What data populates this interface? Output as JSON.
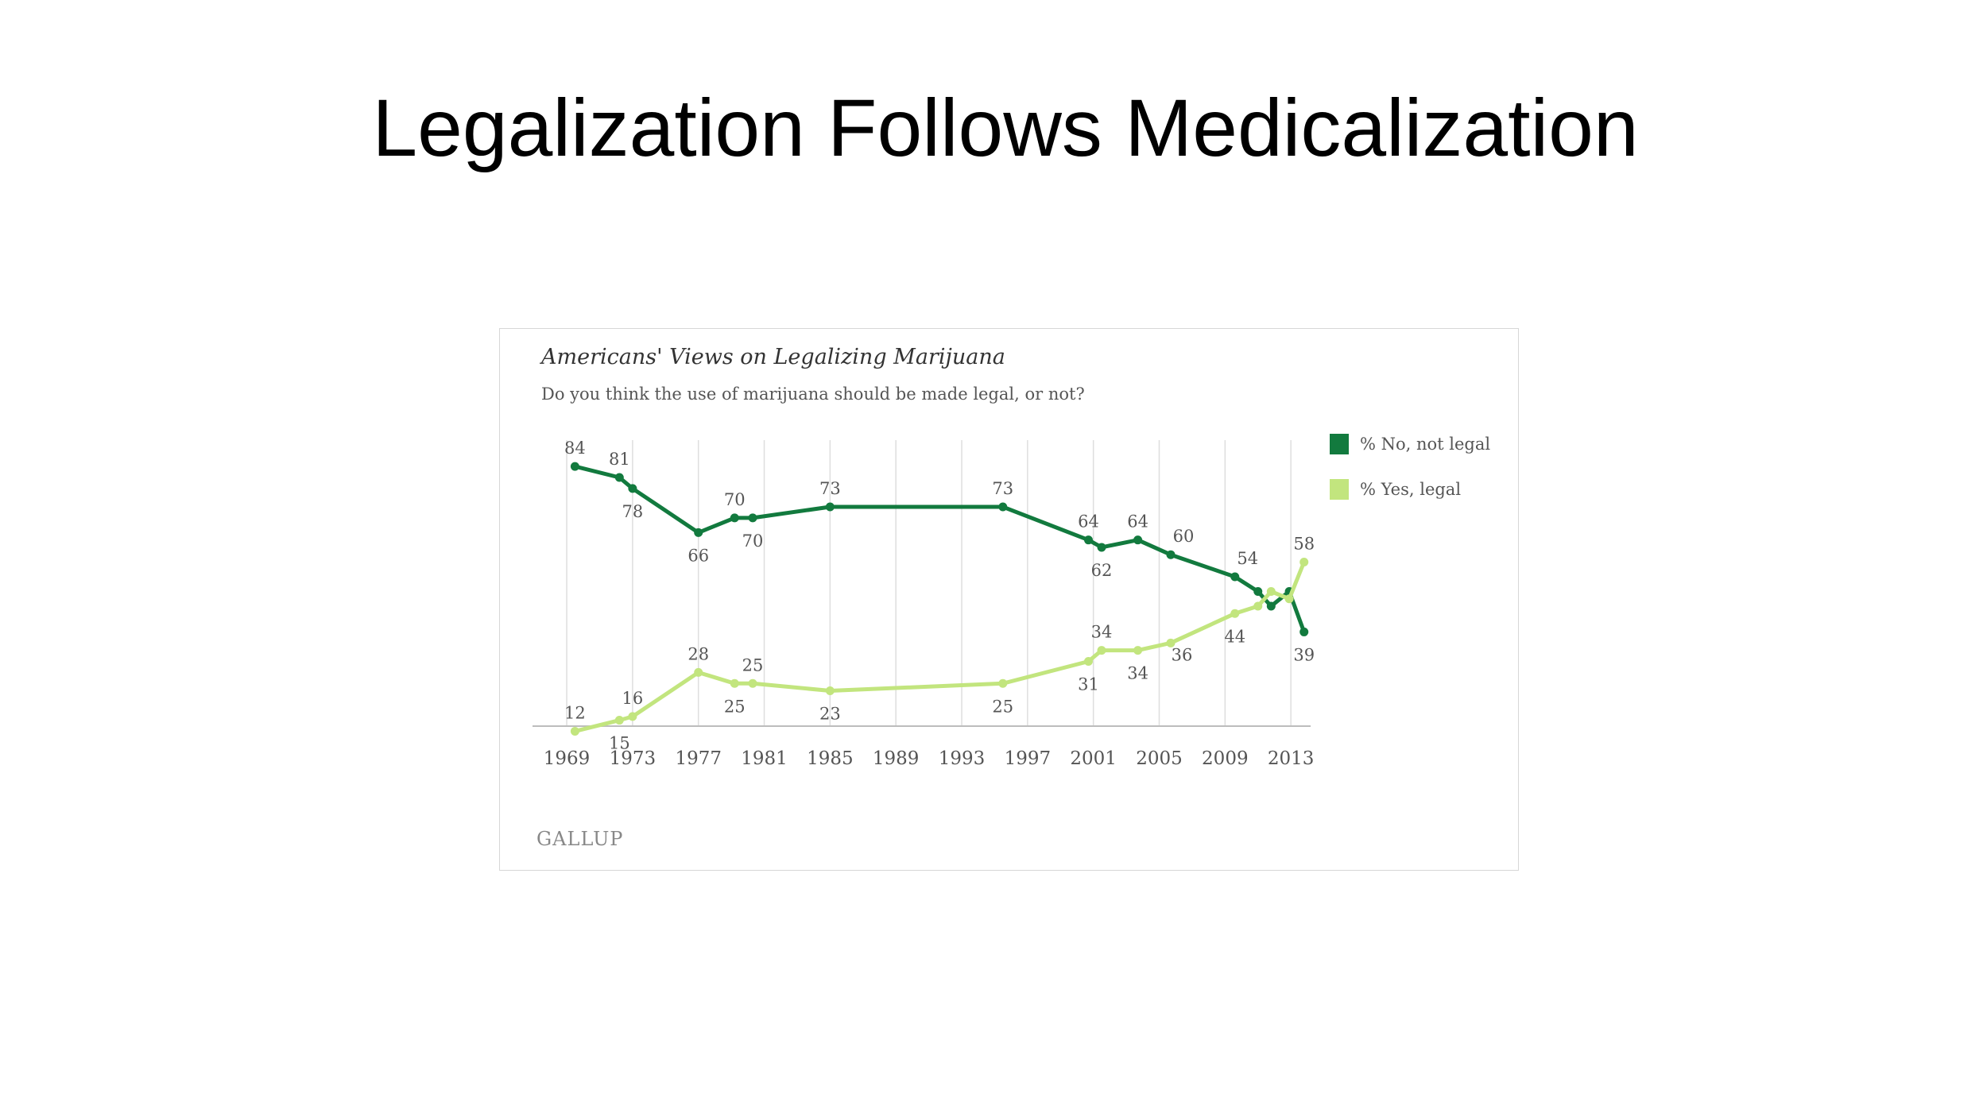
{
  "slide": {
    "title": "Legalization Follows Medicalization"
  },
  "chart_data": {
    "type": "line",
    "title": "Americans' Views on Legalizing Marijuana",
    "subtitle": "Do you think the use of marijuana should be made legal, or not?",
    "source": "GALLUP",
    "xlabel": "",
    "ylabel": "",
    "xlim": [
      1967.5,
      2014.2
    ],
    "ylim": [
      0,
      100
    ],
    "x_ticks": [
      "1969",
      "1973",
      "1977",
      "1981",
      "1985",
      "1989",
      "1993",
      "1997",
      "2001",
      "2005",
      "2009",
      "2013"
    ],
    "grid": "vertical",
    "legend_position": "right",
    "series": [
      {
        "name": "% No, not legal",
        "color": "#127a3e",
        "x": [
          1969.5,
          1972.2,
          1973.0,
          1977.0,
          1979.2,
          1980.3,
          1985.0,
          1995.5,
          2000.7,
          2001.5,
          2003.7,
          2005.7,
          2009.6,
          2011.0,
          2011.8,
          2012.9,
          2013.8
        ],
        "values": [
          84,
          81,
          78,
          66,
          70,
          70,
          73,
          73,
          64,
          62,
          64,
          60,
          54,
          50,
          46,
          50,
          39
        ],
        "labels": [
          {
            "i": 0,
            "text": "84",
            "pos": "above"
          },
          {
            "i": 1,
            "text": "81",
            "pos": "above"
          },
          {
            "i": 2,
            "text": "78",
            "pos": "below"
          },
          {
            "i": 3,
            "text": "66",
            "pos": "below"
          },
          {
            "i": 4,
            "text": "70",
            "pos": "above"
          },
          {
            "i": 5,
            "text": "70",
            "pos": "below"
          },
          {
            "i": 6,
            "text": "73",
            "pos": "above"
          },
          {
            "i": 7,
            "text": "73",
            "pos": "above"
          },
          {
            "i": 8,
            "text": "64",
            "pos": "above"
          },
          {
            "i": 9,
            "text": "62",
            "pos": "below"
          },
          {
            "i": 10,
            "text": "64",
            "pos": "above"
          },
          {
            "i": 11,
            "text": "60",
            "pos": "above-right"
          },
          {
            "i": 12,
            "text": "54",
            "pos": "above-right"
          },
          {
            "i": 16,
            "text": "39",
            "pos": "below"
          }
        ]
      },
      {
        "name": "% Yes, legal",
        "color": "#c2e57e",
        "x": [
          1969.5,
          1972.2,
          1973.0,
          1977.0,
          1979.2,
          1980.3,
          1985.0,
          1995.5,
          2000.7,
          2001.5,
          2003.7,
          2005.7,
          2009.6,
          2011.0,
          2011.8,
          2012.9,
          2013.8
        ],
        "values": [
          12,
          15,
          16,
          28,
          25,
          25,
          23,
          25,
          31,
          34,
          34,
          36,
          44,
          46,
          50,
          48,
          58
        ],
        "labels": [
          {
            "i": 0,
            "text": "12",
            "pos": "above"
          },
          {
            "i": 1,
            "text": "15",
            "pos": "below"
          },
          {
            "i": 2,
            "text": "16",
            "pos": "above"
          },
          {
            "i": 3,
            "text": "28",
            "pos": "above"
          },
          {
            "i": 4,
            "text": "25",
            "pos": "below"
          },
          {
            "i": 5,
            "text": "25",
            "pos": "above"
          },
          {
            "i": 6,
            "text": "23",
            "pos": "below"
          },
          {
            "i": 7,
            "text": "25",
            "pos": "below"
          },
          {
            "i": 8,
            "text": "31",
            "pos": "below"
          },
          {
            "i": 9,
            "text": "34",
            "pos": "above"
          },
          {
            "i": 10,
            "text": "34",
            "pos": "below"
          },
          {
            "i": 11,
            "text": "36",
            "pos": "below-right"
          },
          {
            "i": 12,
            "text": "44",
            "pos": "below"
          },
          {
            "i": 16,
            "text": "58",
            "pos": "above"
          }
        ]
      }
    ]
  }
}
